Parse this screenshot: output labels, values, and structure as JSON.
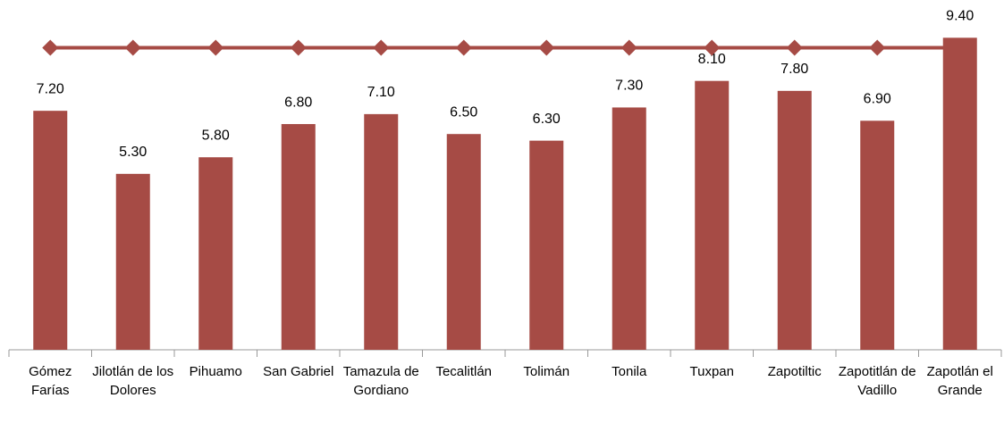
{
  "chart_data": {
    "type": "bar",
    "categories": [
      "Gómez Farías",
      "Jilotlán de los Dolores",
      "Pihuamo",
      "San Gabriel",
      "Tamazula de Gordiano",
      "Tecalitlán",
      "Tolimán",
      "Tonila",
      "Tuxpan",
      "Zapotiltic",
      "Zapotitlán de Vadillo",
      "Zapotlán el Grande"
    ],
    "series": [
      {
        "type": "bar",
        "color": "#a64b45",
        "values": [
          7.2,
          5.3,
          5.8,
          6.8,
          7.1,
          6.5,
          6.3,
          7.3,
          8.1,
          7.8,
          6.9,
          9.4
        ],
        "value_labels": [
          "7.20",
          "5.30",
          "5.80",
          "6.80",
          "7.10",
          "6.50",
          "6.30",
          "7.30",
          "8.10",
          "7.80",
          "6.90",
          "9.40"
        ]
      },
      {
        "type": "line",
        "color": "#a64b45",
        "values": [
          9.1,
          9.1,
          9.1,
          9.1,
          9.1,
          9.1,
          9.1,
          9.1,
          9.1,
          9.1,
          9.1,
          9.1
        ]
      }
    ],
    "ylim": [
      0,
      10
    ]
  }
}
